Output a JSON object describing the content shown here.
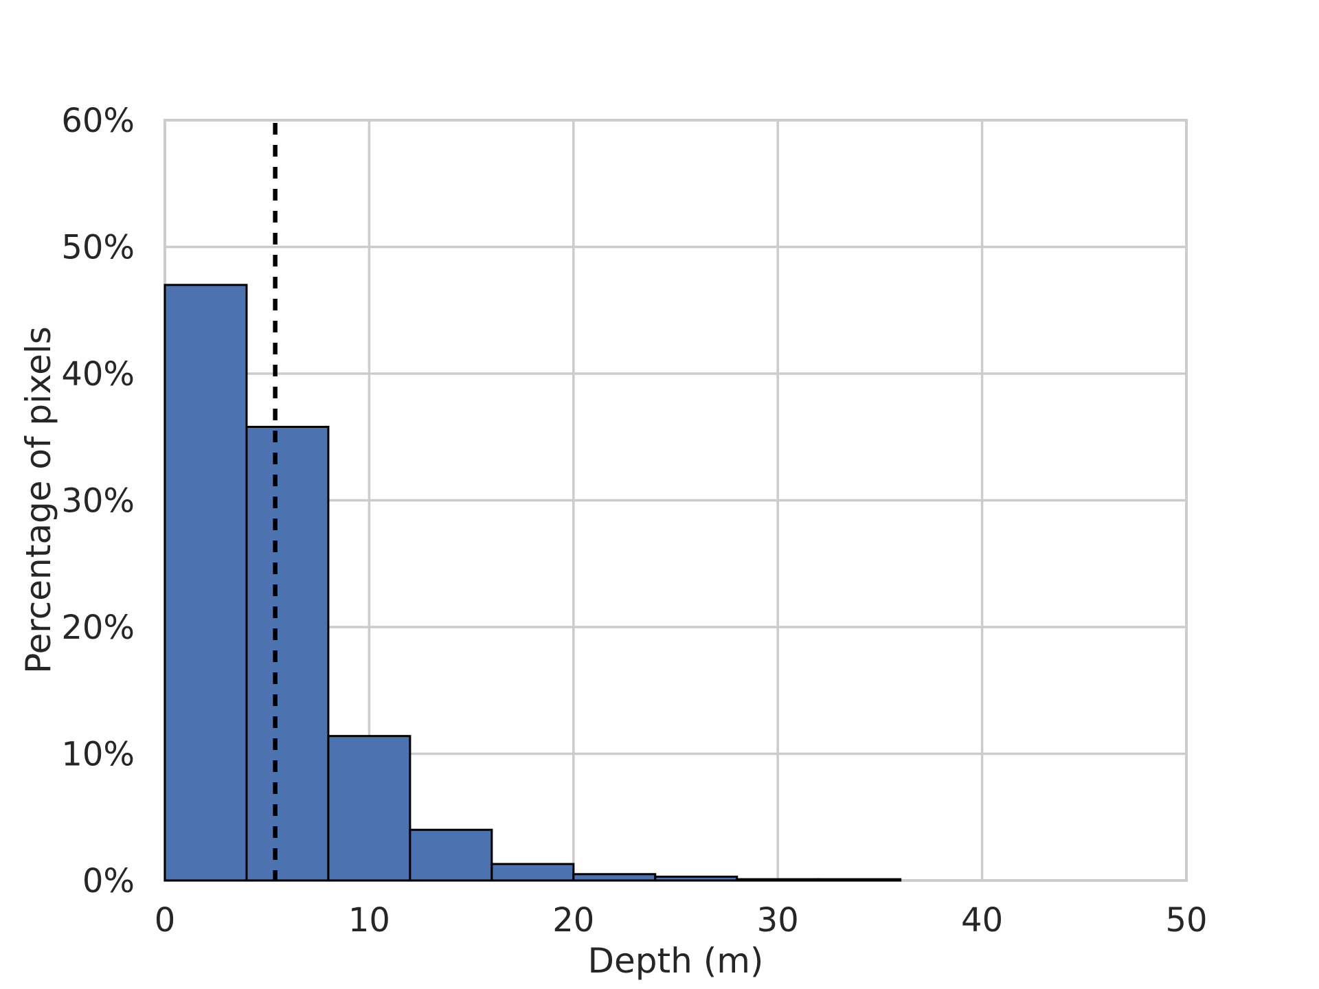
{
  "chart_data": {
    "type": "bar",
    "subtype": "histogram",
    "title": "",
    "xlabel": "Depth (m)",
    "ylabel": "Percentage of pixels",
    "bin_edges": [
      0,
      4,
      8,
      12,
      16,
      20,
      24,
      28,
      32,
      36
    ],
    "values": [
      47.0,
      35.8,
      11.4,
      4.0,
      1.3,
      0.5,
      0.3,
      0.1,
      0.1
    ],
    "value_unit": "%",
    "xlim": [
      0,
      50
    ],
    "ylim": [
      0,
      60
    ],
    "xticks": {
      "values": [
        0,
        10,
        20,
        30,
        40,
        50
      ],
      "labels": [
        "0",
        "10",
        "20",
        "30",
        "40",
        "50"
      ]
    },
    "yticks": {
      "values": [
        0,
        10,
        20,
        30,
        40,
        50,
        60
      ],
      "labels": [
        "0%",
        "10%",
        "20%",
        "30%",
        "40%",
        "50%",
        "60%"
      ]
    },
    "marker_line": {
      "x": 5.4,
      "style": "dashed",
      "color": "#000000",
      "orientation": "vertical"
    },
    "grid": true,
    "legend": null,
    "colors": {
      "bar_fill": "#4C72B0",
      "bar_edge": "#000000",
      "grid": "#cccccc",
      "text": "#262626",
      "background": "#ffffff"
    }
  }
}
